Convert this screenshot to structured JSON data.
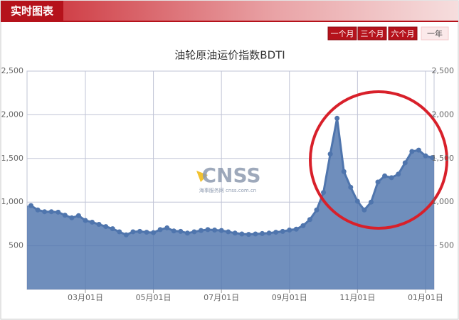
{
  "header": {
    "title": "实时图表"
  },
  "buttons": [
    "一个月",
    "三个月",
    "六个月",
    "一年"
  ],
  "watermark": {
    "logo": "CNSS",
    "caption": "海事服务网 cnss.com.cn"
  },
  "chart_data": {
    "type": "area",
    "title": "油轮原油运价指数BDTI",
    "categories": [
      null,
      null,
      null,
      null,
      null,
      null,
      null,
      null,
      "03月01日",
      null,
      null,
      null,
      null,
      null,
      null,
      null,
      null,
      null,
      "05月01日",
      null,
      null,
      null,
      null,
      null,
      null,
      null,
      null,
      null,
      "07月01日",
      null,
      null,
      null,
      null,
      null,
      null,
      null,
      null,
      null,
      "09月01日",
      null,
      null,
      null,
      null,
      null,
      null,
      null,
      null,
      null,
      "11月01日",
      null,
      null,
      null,
      null,
      null,
      null,
      null,
      null,
      null,
      "01月01日",
      null
    ],
    "values": [
      960,
      910,
      890,
      890,
      885,
      850,
      820,
      845,
      790,
      770,
      745,
      720,
      695,
      660,
      625,
      660,
      665,
      655,
      650,
      685,
      705,
      670,
      665,
      645,
      660,
      675,
      685,
      680,
      675,
      660,
      645,
      635,
      630,
      635,
      640,
      645,
      655,
      665,
      680,
      690,
      730,
      800,
      910,
      1110,
      1550,
      1960,
      1350,
      1170,
      1010,
      910,
      1000,
      1230,
      1300,
      1280,
      1320,
      1450,
      1580,
      1595,
      1530,
      1510
    ],
    "color": "#4f75ad",
    "ylim": [
      0,
      2500
    ],
    "yticks": [
      500,
      {
        "value": 1000,
        "label": "1,000"
      },
      {
        "value": 1500,
        "label": "1,500"
      },
      {
        "value": 2000,
        "label": "2,000"
      },
      {
        "value": 2500,
        "label": "2,500"
      }
    ],
    "y2lim": [
      0,
      2500
    ],
    "y2ticks": [
      500,
      {
        "value": 1000,
        "label": "1,000"
      },
      {
        "value": 1500,
        "label": "1,500"
      },
      {
        "value": 2000,
        "label": "2,000"
      },
      {
        "value": 2500,
        "label": "2,500"
      }
    ],
    "grid": true
  }
}
